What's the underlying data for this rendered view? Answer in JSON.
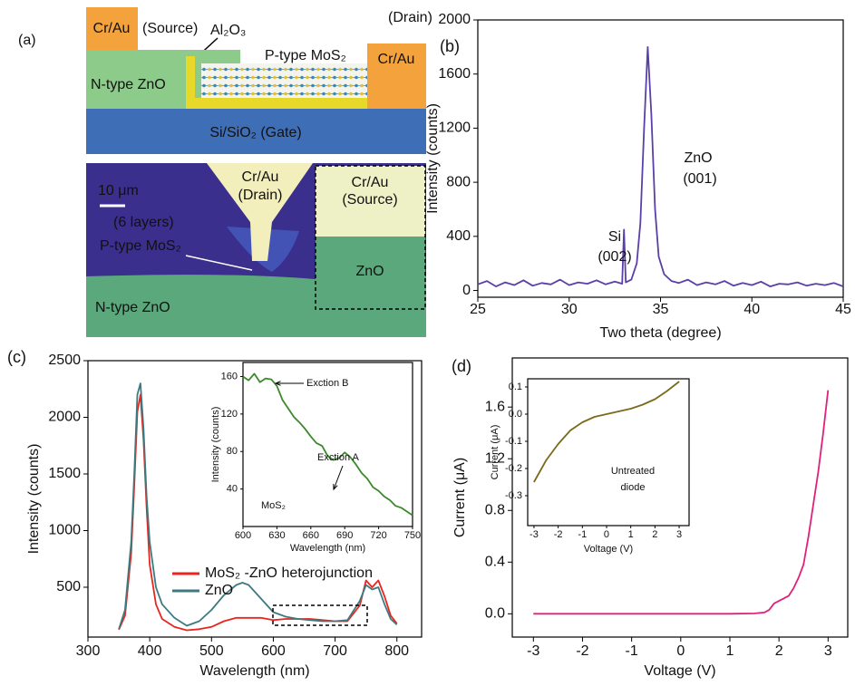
{
  "diagram": {
    "label": "(a)",
    "schematic": {
      "source_metal": "Cr/Au",
      "source": "(Source)",
      "oxide": "Al₂O₃",
      "drain": "(Drain)",
      "drain_metal": "Cr/Au",
      "channel": "P-type MoS₂",
      "n_layer": "N-type ZnO",
      "gate": "Si/SiO₂ (Gate)"
    },
    "micrograph": {
      "drain": [
        "Cr/Au",
        "(Drain)"
      ],
      "scale": "10 μm",
      "layers": "(6 layers)",
      "flake": "P-type MoS₂",
      "n_layer": "N-type ZnO",
      "source": [
        "Cr/Au",
        "(Source)"
      ],
      "zno": "ZnO"
    }
  },
  "chart_data": [
    {
      "type": "line",
      "label": "(b)",
      "xlabel": "Two theta (degree)",
      "ylabel": "Intensity (counts)",
      "x": [
        25,
        25.5,
        26,
        26.5,
        27,
        27.5,
        28,
        28.5,
        29,
        29.5,
        30,
        30.5,
        31,
        31.5,
        32,
        32.5,
        32.9,
        33,
        33.1,
        33.4,
        33.7,
        33.9,
        34.1,
        34.3,
        34.5,
        34.7,
        34.9,
        35.2,
        35.6,
        36,
        36.5,
        37,
        37.5,
        38,
        38.5,
        39,
        39.5,
        40,
        40.5,
        41,
        41.5,
        42,
        42.5,
        43,
        43.5,
        44,
        44.5,
        45
      ],
      "values": [
        45,
        70,
        30,
        60,
        40,
        75,
        35,
        55,
        45,
        80,
        40,
        60,
        50,
        75,
        45,
        65,
        50,
        450,
        60,
        80,
        200,
        500,
        1200,
        1800,
        1300,
        600,
        250,
        120,
        70,
        55,
        80,
        40,
        60,
        45,
        70,
        35,
        55,
        40,
        65,
        30,
        50,
        45,
        60,
        35,
        50,
        40,
        55,
        30
      ],
      "color": "#5b3fa6",
      "xlim": [
        25,
        45
      ],
      "ylim": [
        -50,
        2000
      ],
      "xticks": [
        25,
        30,
        35,
        40,
        45
      ],
      "yticks": [
        0,
        400,
        800,
        1200,
        1600,
        2000
      ],
      "annotations": [
        "Si",
        "(002)",
        "ZnO",
        "(001)"
      ]
    },
    {
      "type": "line",
      "label": "(c)",
      "xlabel": "Wavelength (nm)",
      "ylabel": "Intensity (counts)",
      "x": [
        350,
        360,
        370,
        375,
        380,
        385,
        390,
        395,
        400,
        410,
        420,
        440,
        460,
        480,
        500,
        520,
        540,
        550,
        560,
        580,
        600,
        620,
        640,
        660,
        680,
        700,
        720,
        740,
        750,
        760,
        770,
        780,
        790,
        800
      ],
      "series": [
        {
          "name": "MoS₂ -ZnO heterojunction",
          "color": "#e8251f",
          "values": [
            125,
            250,
            800,
            1400,
            2050,
            2200,
            1800,
            1200,
            700,
            350,
            220,
            150,
            120,
            130,
            150,
            200,
            230,
            230,
            230,
            230,
            210,
            220,
            220,
            220,
            210,
            200,
            200,
            340,
            560,
            500,
            560,
            420,
            250,
            180
          ]
        },
        {
          "name": "ZnO",
          "color": "#3d7a80",
          "values": [
            130,
            300,
            900,
            1500,
            2200,
            2300,
            1900,
            1300,
            900,
            500,
            350,
            230,
            160,
            200,
            300,
            430,
            520,
            540,
            520,
            400,
            280,
            240,
            220,
            210,
            200,
            200,
            210,
            380,
            520,
            480,
            500,
            350,
            220,
            170
          ]
        }
      ],
      "xlim": [
        300,
        840
      ],
      "ylim": [
        60,
        2500
      ],
      "xticks": [
        300,
        400,
        500,
        600,
        700,
        800
      ],
      "yticks": [
        500,
        1000,
        1500,
        2000,
        2500
      ]
    },
    {
      "type": "line",
      "xlabel": "Wavelength (nm)",
      "ylabel": "Intensity (counts)",
      "x": [
        600,
        605,
        610,
        615,
        620,
        625,
        630,
        635,
        640,
        645,
        650,
        655,
        660,
        665,
        670,
        675,
        680,
        685,
        690,
        695,
        700,
        705,
        710,
        715,
        720,
        725,
        730,
        735,
        740,
        745,
        750
      ],
      "values": [
        160,
        156,
        163,
        154,
        158,
        157,
        150,
        135,
        126,
        117,
        111,
        104,
        96,
        89,
        86,
        75,
        71,
        73,
        79,
        74,
        66,
        57,
        51,
        42,
        38,
        32,
        28,
        22,
        20,
        16,
        12
      ],
      "color": "#3a8a2a",
      "xlim": [
        600,
        750
      ],
      "ylim": [
        0,
        175
      ],
      "xticks": [
        600,
        630,
        660,
        690,
        720,
        750
      ],
      "yticks": [
        40,
        80,
        120,
        160
      ],
      "annotations": [
        "Exction B",
        "Exction A",
        "MoS₂"
      ]
    },
    {
      "type": "line",
      "label": "(d)",
      "xlabel": "Voltage (V)",
      "ylabel": "Current (μA)",
      "x": [
        -3,
        -2,
        -1,
        0,
        1,
        1.5,
        1.7,
        1.8,
        1.9,
        2,
        2.2,
        2.3,
        2.4,
        2.5,
        2.6,
        2.7,
        2.8,
        2.9,
        3
      ],
      "values": [
        0,
        0,
        0,
        0,
        0,
        0.003,
        0.01,
        0.03,
        0.08,
        0.1,
        0.14,
        0.2,
        0.28,
        0.38,
        0.6,
        0.85,
        1.1,
        1.4,
        1.73
      ],
      "color": "#e0207a",
      "xlim": [
        -3.43,
        3.4
      ],
      "ylim": [
        -0.18,
        1.98
      ],
      "xticks": [
        -3,
        -2,
        -1,
        0,
        1,
        2,
        3
      ],
      "yticks": [
        {
          "value": 0,
          "label": "0.0"
        },
        0.4,
        0.8,
        1.2,
        1.6
      ]
    },
    {
      "type": "line",
      "xlabel": "Voltage (V)",
      "ylabel": "Current (μA)",
      "x": [
        -3,
        -2.5,
        -2,
        -1.5,
        -1,
        -0.5,
        0,
        0.5,
        1,
        1.5,
        2,
        2.5,
        3
      ],
      "values": [
        -0.25,
        -0.17,
        -0.11,
        -0.06,
        -0.03,
        -0.01,
        0,
        0.01,
        0.02,
        0.035,
        0.055,
        0.085,
        0.12
      ],
      "color": "#7a6a1a",
      "xlim": [
        -3.26,
        3.41
      ],
      "ylim": [
        -0.41,
        0.13
      ],
      "xticks": [
        -3,
        -2,
        -1,
        0,
        1,
        2,
        3
      ],
      "yticks": [
        0.1,
        {
          "value": 0,
          "label": "0.0"
        },
        -0.1,
        -0.2,
        -0.3
      ],
      "annotations": [
        "Untreated",
        "diode"
      ]
    }
  ]
}
